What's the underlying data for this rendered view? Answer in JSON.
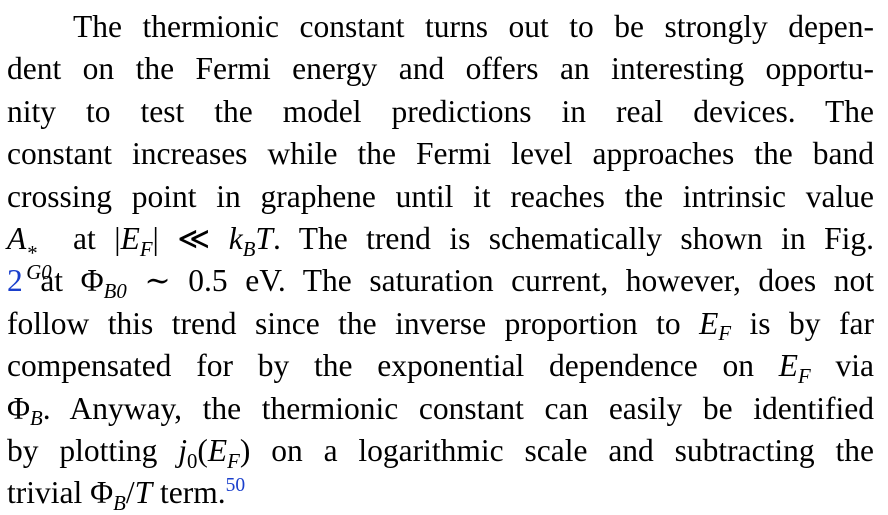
{
  "paragraph": {
    "l1": "The thermionic constant turns out to be strongly depen-",
    "l2": "dent on the Fermi energy and offers an interesting opportu-",
    "l3": "nity to test the model predictions in real devices. The",
    "l4": "constant increases while the Fermi level approaches the band",
    "l5": "crossing point in graphene until it reaches the intrinsic value",
    "l6_a": "A",
    "l6_sup": "*",
    "l6_sub": "G0",
    "l6_b": " at |",
    "l6_c": "E",
    "l6_d": "F",
    "l6_e": "| ≪ ",
    "l6_f": "k",
    "l6_g": "B",
    "l6_h": "T",
    "l6_i": ". The trend is schematically shown in Fig.",
    "l7_fig": "2",
    "l7_a": " at Φ",
    "l7_sub": "B0",
    "l7_b": " ∼ 0.5 eV. The saturation current, however, does not",
    "l8_a": "follow this trend since the inverse proportion to ",
    "l8_e": "E",
    "l8_sub": "F",
    "l8_b": " is by far",
    "l9_a": "compensated for by the exponential dependence on ",
    "l9_e": "E",
    "l9_sub": "F",
    "l9_b": " via",
    "l10_a": "Φ",
    "l10_sub": "B",
    "l10_b": ". Anyway, the thermionic constant can easily be identified",
    "l11_a": "by plotting ",
    "l11_j": "j",
    "l11_sub0": "0",
    "l11_p": "(",
    "l11_e": "E",
    "l11_sub": "F",
    "l11_b": ") on a logarithmic scale and subtracting the",
    "l12_a": "trivial Φ",
    "l12_sub": "B",
    "l12_slash": "/",
    "l12_t": "T",
    "l12_b": " term.",
    "l12_ref": "50"
  }
}
